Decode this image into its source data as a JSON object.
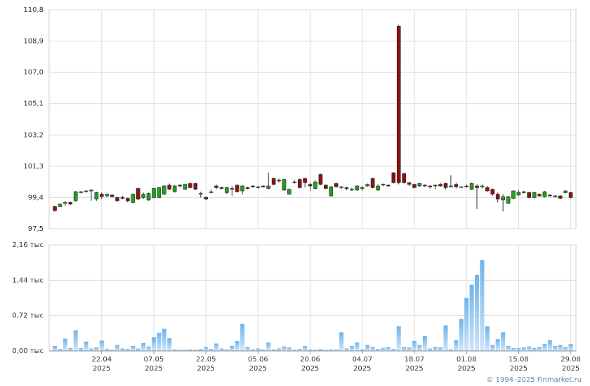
{
  "chart_data": [
    {
      "type": "candlestick",
      "categories": [
        null,
        null,
        null,
        null,
        null,
        null,
        null,
        null,
        null,
        [
          "22.04",
          "2025"
        ],
        null,
        null,
        null,
        null,
        null,
        null,
        null,
        null,
        null,
        [
          "07.05",
          "2025"
        ],
        null,
        null,
        null,
        null,
        null,
        null,
        null,
        null,
        null,
        [
          "22.05",
          "2025"
        ],
        null,
        null,
        null,
        null,
        null,
        null,
        null,
        null,
        null,
        [
          "05.06",
          "2025"
        ],
        null,
        null,
        null,
        null,
        null,
        null,
        null,
        null,
        null,
        [
          "20.06",
          "2025"
        ],
        null,
        null,
        null,
        null,
        null,
        null,
        null,
        null,
        null,
        [
          "04.07",
          "2025"
        ],
        null,
        null,
        null,
        null,
        null,
        null,
        null,
        null,
        null,
        [
          "18.07",
          "2025"
        ],
        null,
        null,
        null,
        null,
        null,
        null,
        null,
        null,
        null,
        [
          "01.08",
          "2025"
        ],
        null,
        null,
        null,
        null,
        null,
        null,
        null,
        null,
        null,
        [
          "15.08",
          "2025"
        ],
        null,
        null,
        null,
        null,
        null,
        null,
        null,
        null,
        null,
        [
          "29.08",
          "2025"
        ]
      ],
      "open": [
        98.85,
        98.85,
        99.05,
        99.1,
        99.2,
        99.7,
        99.75,
        99.8,
        99.3,
        99.6,
        99.5,
        99.55,
        99.4,
        99.4,
        99.35,
        99.1,
        99.95,
        99.4,
        99.25,
        99.4,
        99.4,
        99.6,
        100.15,
        99.75,
        100.15,
        99.9,
        100.25,
        100.25,
        99.6,
        99.4,
        99.7,
        100.1,
        100.0,
        99.7,
        99.95,
        100.15,
        99.8,
        100.0,
        100.1,
        100.0,
        100.1,
        99.95,
        100.55,
        100.45,
        99.85,
        99.6,
        100.3,
        100.5,
        100.55,
        100.2,
        99.95,
        100.8,
        100.15,
        99.5,
        100.25,
        100.0,
        100.0,
        99.85,
        99.85,
        99.95,
        100.1,
        100.55,
        99.85,
        100.2,
        100.15,
        100.9,
        109.8,
        100.85,
        100.3,
        100.2,
        100.1,
        100.15,
        100.1,
        100.1,
        100.2,
        100.25,
        100.05,
        100.2,
        100.05,
        100.1,
        99.9,
        100.1,
        100.05,
        100.0,
        99.9,
        99.6,
        99.25,
        99.05,
        99.35,
        99.55,
        99.75,
        99.7,
        99.4,
        99.6,
        99.45,
        99.55,
        99.45,
        99.5,
        99.7,
        99.7
      ],
      "high": [
        98.9,
        99.05,
        99.2,
        99.15,
        99.8,
        99.8,
        99.85,
        99.9,
        99.75,
        99.7,
        99.65,
        99.6,
        99.45,
        99.5,
        99.4,
        99.65,
        100.0,
        99.7,
        99.7,
        100.0,
        100.05,
        100.15,
        100.25,
        100.15,
        100.2,
        100.25,
        100.3,
        100.3,
        99.75,
        99.5,
        99.9,
        100.2,
        100.05,
        100.05,
        100.1,
        100.2,
        100.15,
        100.05,
        100.15,
        100.1,
        100.15,
        100.9,
        100.6,
        100.55,
        100.55,
        99.95,
        100.45,
        100.55,
        100.6,
        100.3,
        100.45,
        100.85,
        100.2,
        100.1,
        100.3,
        100.1,
        100.05,
        100.0,
        100.15,
        100.1,
        100.25,
        100.6,
        100.2,
        100.25,
        100.2,
        100.95,
        109.9,
        100.9,
        100.35,
        100.25,
        100.3,
        100.2,
        100.15,
        100.2,
        100.3,
        100.3,
        100.75,
        100.3,
        100.1,
        100.2,
        100.3,
        100.2,
        100.2,
        100.1,
        99.95,
        99.7,
        99.6,
        99.5,
        99.85,
        99.85,
        99.8,
        99.75,
        99.75,
        99.65,
        99.8,
        99.6,
        99.55,
        99.55,
        99.85,
        99.75
      ],
      "low": [
        98.55,
        98.8,
        98.9,
        98.95,
        99.15,
        99.65,
        99.7,
        99.2,
        99.2,
        99.3,
        99.4,
        99.4,
        99.15,
        99.3,
        99.1,
        99.05,
        99.25,
        99.3,
        99.2,
        99.35,
        99.35,
        99.55,
        99.85,
        99.7,
        100.0,
        99.85,
        99.95,
        99.85,
        99.4,
        99.25,
        99.65,
        99.9,
        99.9,
        99.6,
        99.5,
        99.7,
        99.6,
        99.9,
        100.0,
        99.95,
        100.0,
        99.9,
        100.15,
        100.3,
        99.8,
        99.55,
        100.25,
        99.95,
        100.0,
        99.8,
        99.9,
        100.15,
        99.9,
        99.45,
        100.0,
        99.9,
        99.85,
        99.8,
        99.8,
        99.8,
        100.05,
        99.95,
        99.8,
        100.1,
        100.05,
        100.25,
        100.2,
        100.25,
        100.1,
        99.95,
        100.05,
        100.05,
        99.95,
        99.9,
        100.05,
        99.9,
        100.0,
        99.95,
        100.0,
        100.0,
        99.85,
        98.7,
        99.95,
        99.75,
        99.5,
        99.1,
        98.55,
        99.0,
        99.3,
        99.5,
        99.65,
        99.35,
        99.35,
        99.45,
        99.4,
        99.45,
        99.4,
        99.3,
        99.65,
        99.35
      ],
      "close": [
        98.6,
        99.0,
        99.1,
        99.0,
        99.75,
        99.75,
        99.8,
        99.85,
        99.7,
        99.45,
        99.6,
        99.45,
        99.2,
        99.35,
        99.2,
        99.6,
        99.3,
        99.6,
        99.65,
        99.95,
        100.0,
        100.1,
        99.9,
        100.1,
        100.1,
        100.2,
        100.0,
        99.9,
        99.65,
        99.3,
        99.75,
        100.0,
        99.95,
        100.0,
        99.9,
        99.75,
        100.1,
        99.95,
        100.05,
        100.05,
        100.05,
        100.1,
        100.2,
        100.4,
        100.5,
        99.9,
        100.35,
        100.0,
        100.3,
        100.1,
        100.35,
        100.2,
        99.95,
        100.05,
        100.05,
        100.05,
        99.95,
        99.9,
        100.1,
        100.0,
        100.2,
        100.0,
        100.1,
        100.15,
        100.1,
        100.3,
        100.3,
        100.3,
        100.2,
        100.0,
        100.25,
        100.1,
        100.05,
        100.15,
        100.1,
        100.0,
        100.1,
        100.05,
        100.05,
        100.05,
        100.25,
        100.0,
        100.1,
        99.8,
        99.6,
        99.3,
        99.45,
        99.45,
        99.8,
        99.7,
        99.7,
        99.4,
        99.7,
        99.5,
        99.75,
        99.5,
        99.5,
        99.35,
        99.8,
        99.4
      ],
      "up_color": "#22a022",
      "down_color": "#8b1414",
      "ylim": [
        97.5,
        110.8
      ],
      "yticks": [
        {
          "value": 97.5,
          "label": "97,5"
        },
        {
          "value": 99.4,
          "label": "99,4"
        },
        {
          "value": 101.3,
          "label": "101,3"
        },
        {
          "value": 103.2,
          "label": "103,2"
        },
        {
          "value": 105.1,
          "label": "105,1"
        },
        {
          "value": 107.0,
          "label": "107,0"
        },
        {
          "value": 108.9,
          "label": "108,9"
        },
        {
          "value": 110.8,
          "label": "110,8"
        }
      ],
      "grid": true
    },
    {
      "type": "bar",
      "values": [
        0.1,
        0.04,
        0.25,
        0.06,
        0.42,
        0.06,
        0.19,
        0.05,
        0.07,
        0.21,
        0.04,
        0.02,
        0.12,
        0.05,
        0.04,
        0.1,
        0.05,
        0.16,
        0.09,
        0.28,
        0.37,
        0.45,
        0.26,
        0.03,
        0.02,
        0.02,
        0.03,
        0.02,
        0.04,
        0.08,
        0.04,
        0.15,
        0.05,
        0.03,
        0.1,
        0.2,
        0.55,
        0.08,
        0.03,
        0.05,
        0.03,
        0.17,
        0.03,
        0.05,
        0.09,
        0.07,
        0.02,
        0.04,
        0.1,
        0.03,
        0.02,
        0.04,
        0.02,
        0.03,
        0.03,
        0.38,
        0.05,
        0.1,
        0.17,
        0.03,
        0.12,
        0.08,
        0.04,
        0.06,
        0.08,
        0.04,
        0.5,
        0.08,
        0.07,
        0.2,
        0.12,
        0.3,
        0.05,
        0.08,
        0.07,
        0.52,
        0.03,
        0.22,
        0.65,
        1.08,
        1.35,
        1.55,
        1.85,
        0.5,
        0.12,
        0.24,
        0.38,
        0.1,
        0.06,
        0.06,
        0.07,
        0.09,
        0.06,
        0.08,
        0.14,
        0.22,
        0.1,
        0.12,
        0.08,
        0.14
      ],
      "color": "#7fbcef",
      "ylim": [
        0,
        2.16
      ],
      "yticks": [
        {
          "value": 0,
          "label": "0,00 тыс"
        },
        {
          "value": 0.72,
          "label": "0,72 тыс"
        },
        {
          "value": 1.44,
          "label": "1,44 тыс"
        },
        {
          "value": 2.16,
          "label": "2,16 тыс"
        }
      ],
      "grid": true
    }
  ],
  "footer": "© 1994–2025 Finmarket.ru"
}
